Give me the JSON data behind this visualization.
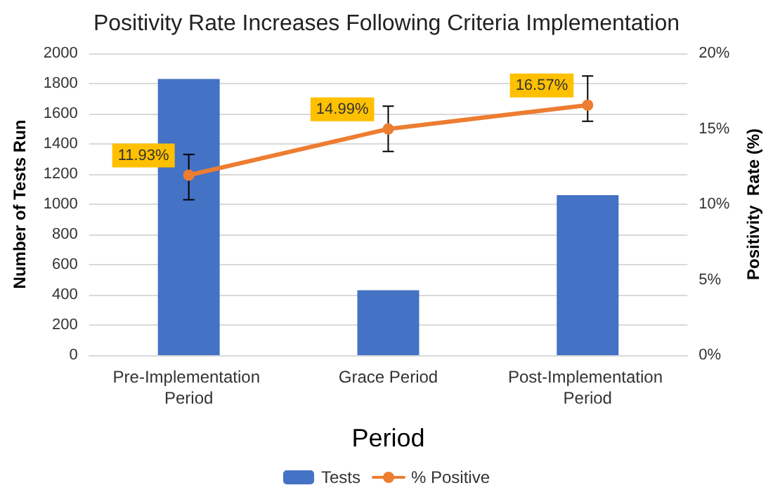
{
  "chart_data": {
    "type": "bar",
    "title": "Positivity Rate Increases Following Criteria Implementation",
    "xlabel": "Period",
    "ylabel": "Number of Tests Run",
    "y2label": "Positivity  Rate (%)",
    "categories": [
      "Pre-Implementation Period",
      "Grace Period",
      "Post-Implementation Period"
    ],
    "series": [
      {
        "name": "Tests",
        "color": "#4472c4",
        "values": [
          1830,
          430,
          1060
        ]
      },
      {
        "name": "% Positive",
        "type": "line",
        "axis": "y2",
        "color": "#ed7d31",
        "marker": "circle",
        "values": [
          11.93,
          14.99,
          16.57
        ],
        "value_labels": [
          "11.93%",
          "14.99%",
          "16.57%"
        ],
        "errors": [
          [
            10.3,
            13.3
          ],
          [
            13.5,
            16.5
          ],
          [
            15.5,
            18.5
          ]
        ]
      }
    ],
    "ylim": [
      0,
      2000
    ],
    "yticks": [
      0,
      200,
      400,
      600,
      800,
      1000,
      1200,
      1400,
      1600,
      1800,
      2000
    ],
    "y2lim": [
      0,
      20
    ],
    "y2ticks": [
      {
        "value": 0,
        "label": "0%"
      },
      {
        "value": 5,
        "label": "5%"
      },
      {
        "value": 10,
        "label": "10%"
      },
      {
        "value": 15,
        "label": "15%"
      },
      {
        "value": 20,
        "label": "20%"
      }
    ],
    "grid": "y",
    "legend": "bottom"
  }
}
